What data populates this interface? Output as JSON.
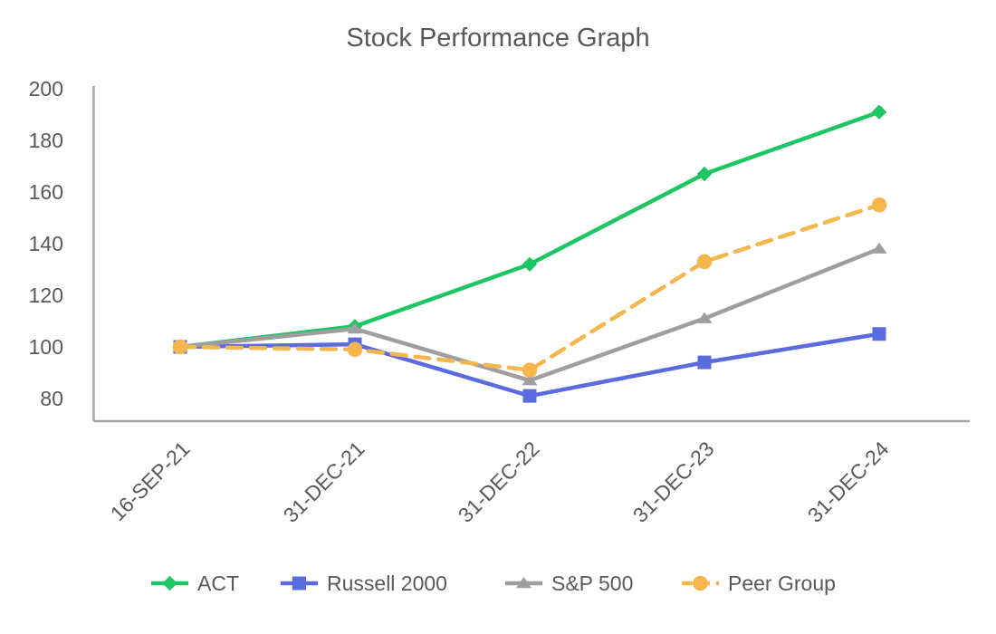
{
  "chart_data": {
    "type": "line",
    "title": "Stock Performance Graph",
    "categories": [
      "16-SEP-21",
      "31-DEC-21",
      "31-DEC-22",
      "31-DEC-23",
      "31-DEC-24"
    ],
    "series": [
      {
        "name": "ACT",
        "color": "#1EC563",
        "marker": "diamond",
        "line_style": "solid",
        "values": [
          100,
          108,
          132,
          167,
          191
        ]
      },
      {
        "name": "Russell 2000",
        "color": "#5A6BE0",
        "marker": "square",
        "line_style": "solid",
        "values": [
          100,
          101,
          81,
          94,
          105
        ]
      },
      {
        "name": "S&P 500",
        "color": "#9E9E9E",
        "marker": "triangle",
        "line_style": "solid",
        "values": [
          100,
          107,
          87,
          111,
          138
        ]
      },
      {
        "name": "Peer Group",
        "color": "#F4B64D",
        "marker": "circle",
        "line_style": "dashed",
        "values": [
          100,
          99,
          91,
          133,
          155
        ]
      }
    ],
    "draw_order": [
      "Russell 2000",
      "ACT",
      "S&P 500",
      "Peer Group"
    ],
    "y_ticks": [
      80,
      100,
      120,
      140,
      160,
      180,
      200
    ],
    "ylim": [
      70,
      205
    ],
    "grid": false,
    "legend_position": "bottom",
    "legend_labels": [
      "ACT",
      "Russell 2000",
      "S&P 500",
      "Peer Group"
    ],
    "text_color": "#595959",
    "axis_color": "#A6A6A6"
  }
}
